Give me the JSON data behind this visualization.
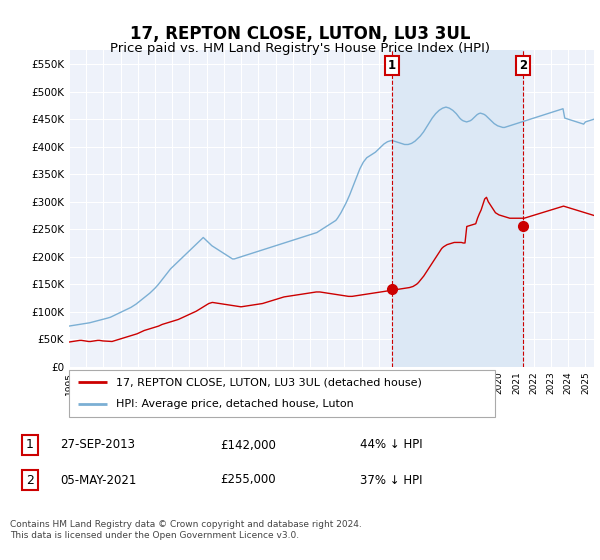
{
  "title": "17, REPTON CLOSE, LUTON, LU3 3UL",
  "subtitle": "Price paid vs. HM Land Registry's House Price Index (HPI)",
  "title_fontsize": 12,
  "subtitle_fontsize": 9.5,
  "ylabel_ticks": [
    "£0",
    "£50K",
    "£100K",
    "£150K",
    "£200K",
    "£250K",
    "£300K",
    "£350K",
    "£400K",
    "£450K",
    "£500K",
    "£550K"
  ],
  "ytick_values": [
    0,
    50000,
    100000,
    150000,
    200000,
    250000,
    300000,
    350000,
    400000,
    450000,
    500000,
    550000
  ],
  "ylim": [
    0,
    575000
  ],
  "xlim": [
    1995.0,
    2025.5
  ],
  "background_color": "#ffffff",
  "plot_bg_color": "#eef2fa",
  "shaded_region_color": "#dce8f5",
  "grid_color": "#ffffff",
  "hpi_color": "#7bafd4",
  "price_color": "#cc0000",
  "dashed_line_color": "#cc0000",
  "sale1_x": 2013.75,
  "sale2_x": 2021.37,
  "sale1_value": 142000,
  "sale2_value": 255000,
  "legend_label1": "17, REPTON CLOSE, LUTON, LU3 3UL (detached house)",
  "legend_label2": "HPI: Average price, detached house, Luton",
  "table_row1": [
    "1",
    "27-SEP-2013",
    "£142,000",
    "44% ↓ HPI"
  ],
  "table_row2": [
    "2",
    "05-MAY-2021",
    "£255,000",
    "37% ↓ HPI"
  ],
  "footer": "Contains HM Land Registry data © Crown copyright and database right 2024.\nThis data is licensed under the Open Government Licence v3.0.",
  "xtick_years": [
    1995,
    1996,
    1997,
    1998,
    1999,
    2000,
    2001,
    2002,
    2003,
    2004,
    2005,
    2006,
    2007,
    2008,
    2009,
    2010,
    2011,
    2012,
    2013,
    2014,
    2015,
    2016,
    2017,
    2018,
    2019,
    2020,
    2021,
    2022,
    2023,
    2024,
    2025
  ],
  "hpi_monthly": [
    74000,
    74500,
    75000,
    75500,
    76000,
    76500,
    77000,
    77500,
    78000,
    78500,
    79000,
    79500,
    80000,
    80800,
    81500,
    82200,
    83000,
    83800,
    84600,
    85500,
    86400,
    87300,
    88200,
    89100,
    90000,
    91500,
    93000,
    94500,
    96000,
    97500,
    99000,
    100500,
    102000,
    103500,
    105000,
    106500,
    108000,
    110000,
    112000,
    114000,
    116500,
    119000,
    121500,
    124000,
    126500,
    129000,
    131500,
    134000,
    137000,
    140000,
    143000,
    146500,
    150000,
    154000,
    158000,
    162000,
    166000,
    170000,
    174000,
    178000,
    181000,
    184000,
    187000,
    190000,
    193000,
    196000,
    199000,
    202000,
    205000,
    208000,
    211000,
    214000,
    217000,
    220000,
    223000,
    226000,
    229000,
    232000,
    235000,
    232000,
    229000,
    226000,
    223000,
    220000,
    218000,
    216000,
    214000,
    212000,
    210000,
    208000,
    206000,
    204000,
    202000,
    200000,
    198000,
    196000,
    196000,
    197000,
    198000,
    199000,
    200000,
    201000,
    202000,
    203000,
    204000,
    205000,
    206000,
    207000,
    208000,
    209000,
    210000,
    211000,
    212000,
    213000,
    214000,
    215000,
    216000,
    217000,
    218000,
    219000,
    220000,
    221000,
    222000,
    223000,
    224000,
    225000,
    226000,
    227000,
    228000,
    229000,
    230000,
    231000,
    232000,
    233000,
    234000,
    235000,
    236000,
    237000,
    238000,
    239000,
    240000,
    241000,
    242000,
    243000,
    244000,
    246000,
    248000,
    250000,
    252000,
    254000,
    256000,
    258000,
    260000,
    262000,
    264000,
    266000,
    270000,
    275000,
    280000,
    286000,
    292000,
    298000,
    305000,
    312000,
    320000,
    328000,
    336000,
    344000,
    352000,
    360000,
    366000,
    372000,
    376000,
    380000,
    382000,
    384000,
    386000,
    388000,
    390000,
    393000,
    396000,
    399000,
    402000,
    405000,
    407000,
    409000,
    410000,
    411000,
    411000,
    410000,
    409000,
    408000,
    407000,
    406000,
    405000,
    404000,
    404000,
    404000,
    405000,
    406000,
    408000,
    410000,
    413000,
    416000,
    419000,
    423000,
    427000,
    432000,
    437000,
    442000,
    447000,
    452000,
    456000,
    460000,
    463000,
    466000,
    468000,
    470000,
    471000,
    472000,
    471000,
    470000,
    468000,
    466000,
    463000,
    460000,
    456000,
    452000,
    449000,
    447000,
    446000,
    445000,
    446000,
    447000,
    449000,
    452000,
    455000,
    458000,
    460000,
    461000,
    460000,
    459000,
    457000,
    454000,
    451000,
    448000,
    445000,
    442000,
    440000,
    438000,
    437000,
    436000,
    435000,
    435000,
    436000,
    437000,
    438000,
    439000,
    440000,
    441000,
    442000,
    443000,
    444000,
    445000,
    446000,
    447000,
    448000,
    449000,
    450000,
    451000,
    452000,
    453000,
    454000,
    455000,
    456000,
    457000,
    458000,
    459000,
    460000,
    461000,
    462000,
    463000,
    464000,
    465000,
    466000,
    467000,
    468000,
    469000,
    452000,
    451000,
    450000,
    449000,
    448000,
    447000,
    446000,
    445000,
    444000,
    443000,
    442000,
    441000,
    445000,
    446000,
    447000,
    448000,
    449000,
    450000
  ],
  "price_monthly": [
    45000,
    45500,
    46000,
    46500,
    47000,
    47500,
    48000,
    48000,
    47500,
    47000,
    46500,
    46000,
    46000,
    46500,
    47000,
    47500,
    48000,
    48000,
    47500,
    47000,
    46800,
    46500,
    46200,
    46000,
    46000,
    47000,
    48000,
    49000,
    50000,
    51000,
    52000,
    53000,
    54000,
    55000,
    56000,
    57000,
    58000,
    59000,
    60000,
    61500,
    63000,
    64500,
    66000,
    67000,
    68000,
    69000,
    70000,
    71000,
    72000,
    73000,
    74000,
    75500,
    77000,
    78000,
    79000,
    80000,
    81000,
    82000,
    83000,
    84000,
    85000,
    86000,
    87500,
    89000,
    90500,
    92000,
    93500,
    95000,
    96500,
    98000,
    99500,
    101000,
    103000,
    105000,
    107000,
    109000,
    111000,
    113000,
    115000,
    116000,
    117000,
    116500,
    116000,
    115500,
    115000,
    114500,
    114000,
    113500,
    113000,
    112500,
    112000,
    111500,
    111000,
    110500,
    110000,
    109500,
    109000,
    109500,
    110000,
    110500,
    111000,
    111500,
    112000,
    112500,
    113000,
    113500,
    114000,
    114500,
    115000,
    116000,
    117000,
    118000,
    119000,
    120000,
    121000,
    122000,
    123000,
    124000,
    125000,
    126000,
    127000,
    127500,
    128000,
    128500,
    129000,
    129500,
    130000,
    130500,
    131000,
    131500,
    132000,
    132500,
    133000,
    133500,
    134000,
    134500,
    135000,
    135500,
    136000,
    136000,
    136000,
    135500,
    135000,
    134500,
    134000,
    133500,
    133000,
    132500,
    132000,
    131500,
    131000,
    130500,
    130000,
    129500,
    129000,
    128500,
    128000,
    128000,
    128000,
    128500,
    129000,
    129500,
    130000,
    130500,
    131000,
    131500,
    132000,
    132500,
    133000,
    133500,
    134000,
    134500,
    135000,
    135500,
    136000,
    136500,
    137000,
    137500,
    138000,
    138500,
    139000,
    139500,
    140000,
    140500,
    141000,
    141500,
    142000,
    142500,
    143000,
    143500,
    144000,
    145000,
    146000,
    148000,
    150000,
    153000,
    157000,
    161000,
    165000,
    170000,
    175000,
    180000,
    185000,
    190000,
    195000,
    200000,
    205000,
    210000,
    215000,
    218000,
    220000,
    222000,
    223000,
    224000,
    225000,
    226000,
    226000,
    226000,
    226000,
    226000,
    225000,
    225000,
    255000,
    256000,
    257000,
    258000,
    259000,
    260000,
    270000,
    278000,
    285000,
    295000,
    305000,
    308000,
    300000,
    295000,
    290000,
    285000,
    280000,
    278000,
    276000,
    275000,
    274000,
    273000,
    272000,
    271000,
    270000,
    270000,
    270000,
    270000,
    270000,
    270000,
    270000,
    270000,
    270000,
    271000,
    272000,
    273000,
    274000,
    275000,
    276000,
    277000,
    278000,
    279000,
    280000,
    281000,
    282000,
    283000,
    284000,
    285000,
    286000,
    287000,
    288000,
    289000,
    290000,
    291000,
    292000,
    291000,
    290000,
    289000,
    288000,
    287000,
    286000,
    285000,
    284000,
    283000,
    282000,
    281000,
    280000,
    279000,
    278000,
    277000,
    276000,
    275000
  ]
}
